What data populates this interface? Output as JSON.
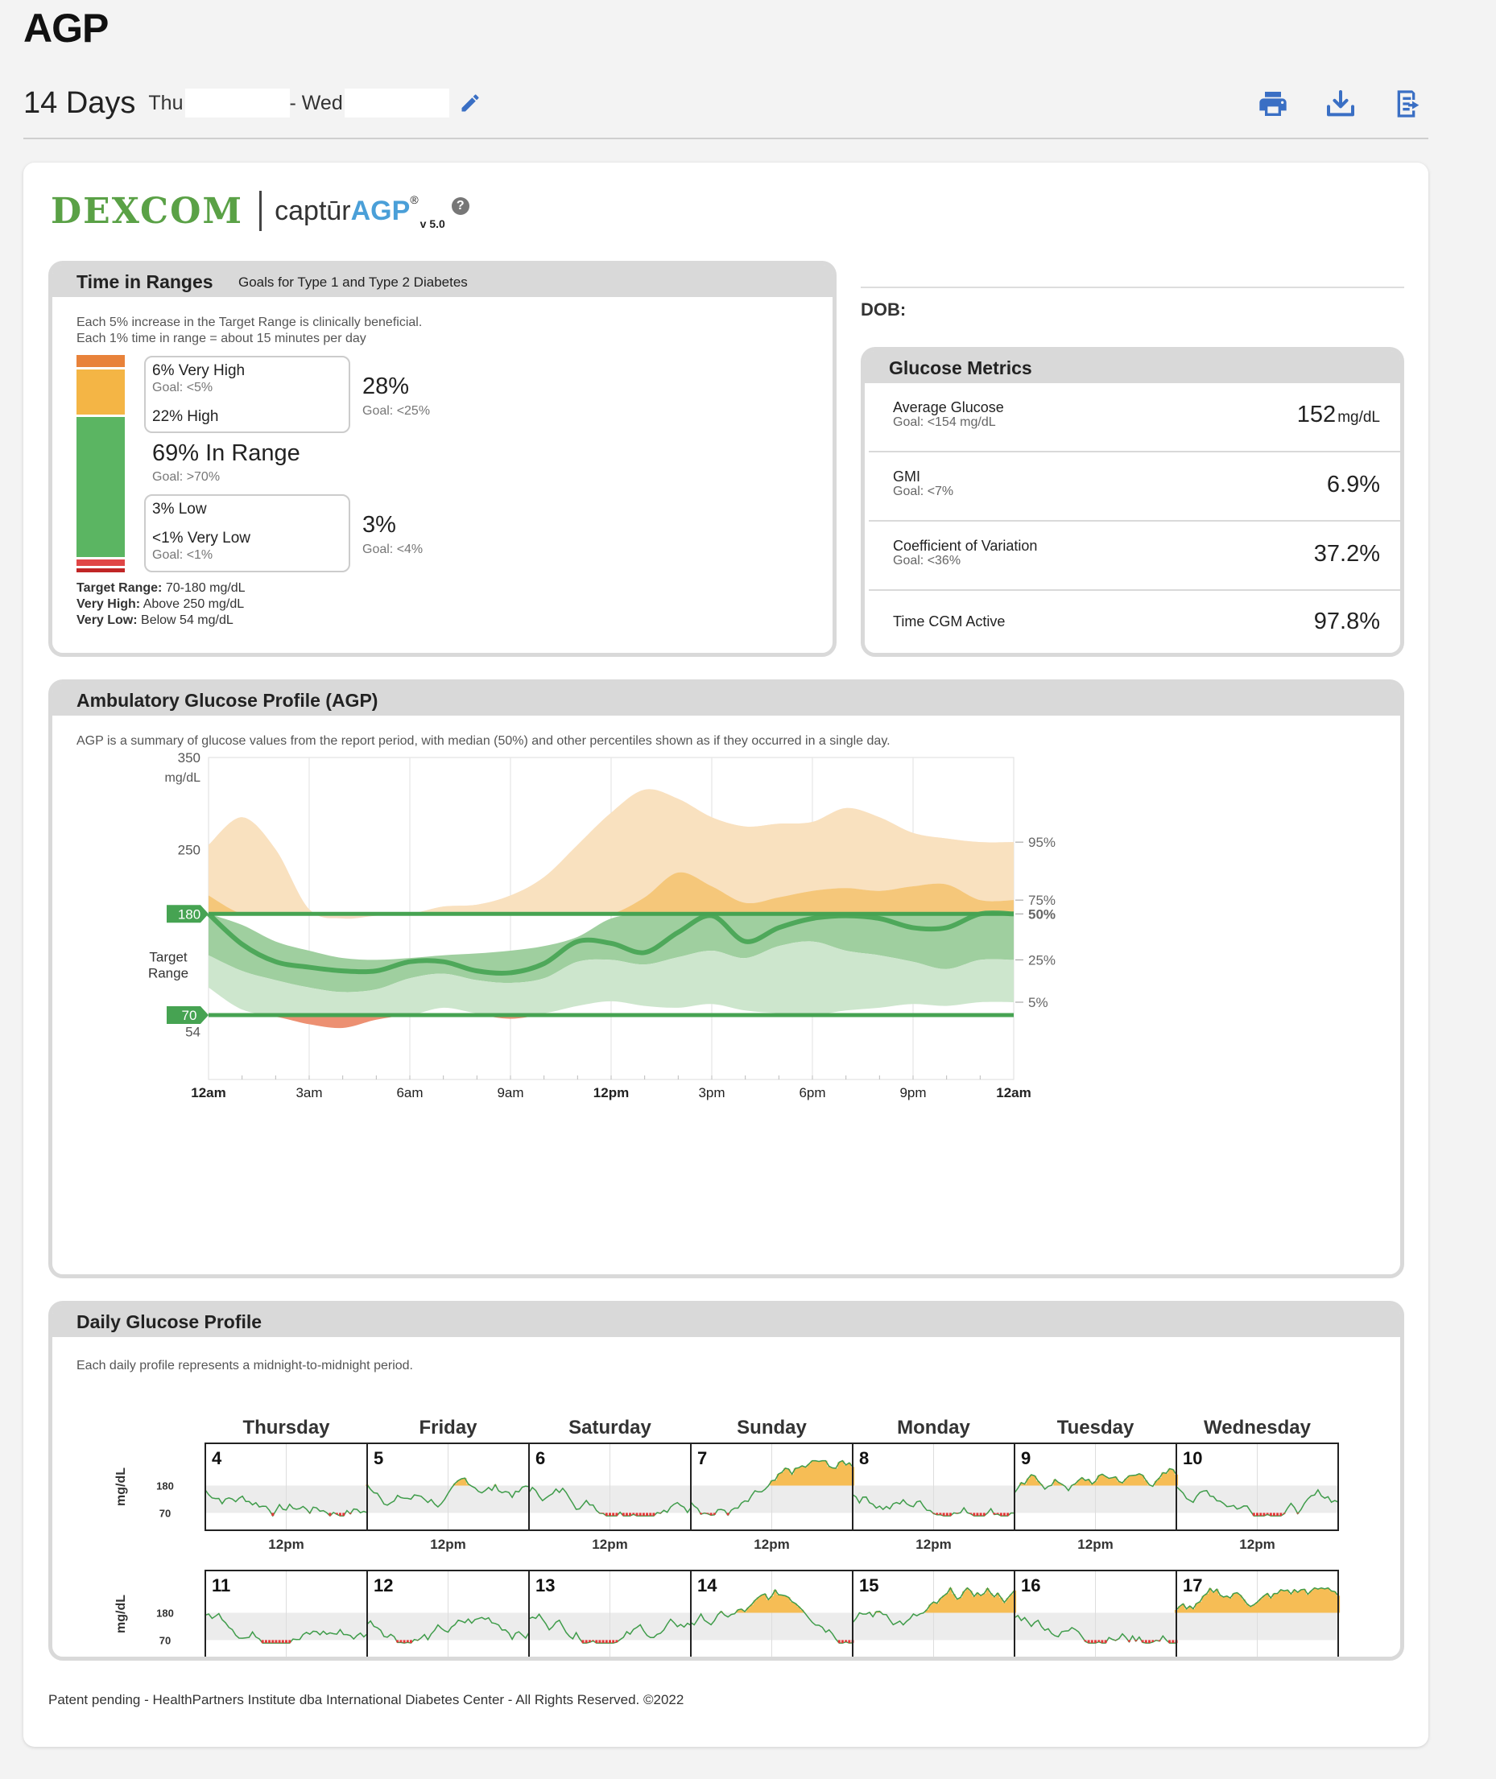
{
  "header": {
    "title": "AGP",
    "days": "14 Days",
    "start_day": "Thu",
    "end_day": "- Wed"
  },
  "toolbar": {
    "icons": [
      "print-icon",
      "download-icon",
      "export-icon"
    ]
  },
  "brand": {
    "dexcom": "DEXCOM",
    "captur": "captūr",
    "agp": "AGP",
    "reg": "®",
    "version": "v 5.0",
    "help": "?"
  },
  "tir": {
    "title": "Time in Ranges",
    "subtitle": "Goals for Type 1 and Type 2 Diabetes",
    "note1": "Each 5% increase in the Target Range is clinically beneficial.",
    "note2": "Each 1% time in range = about 15 minutes per day",
    "very_high": "6% Very High",
    "very_high_goal": "Goal: <5%",
    "high": "22% High",
    "high_total": "28%",
    "high_total_goal": "Goal: <25%",
    "in_range": "69% In Range",
    "in_range_goal": "Goal: >70%",
    "low": "3% Low",
    "very_low": "<1% Very Low",
    "very_low_goal": "Goal: <1%",
    "low_total": "3%",
    "low_total_goal": "Goal: <4%",
    "target_label": "Target Range:",
    "target_value": "70-180 mg/dL",
    "vh_label": "Very High:",
    "vh_value": "Above 250 mg/dL",
    "vl_label": "Very Low:",
    "vl_value": "Below 54 mg/dL",
    "percents": {
      "very_high": 6,
      "high": 22,
      "in_range": 69,
      "low": 3,
      "very_low": 1
    },
    "colors": {
      "very_high": "#e8823a",
      "high": "#f4b545",
      "in_range": "#5bb562",
      "low": "#e04646",
      "very_low": "#c02626"
    }
  },
  "dob": "DOB:",
  "metrics": {
    "title": "Glucose Metrics",
    "avg_label": "Average Glucose",
    "avg_goal": "Goal: <154 mg/dL",
    "avg_value": "152",
    "avg_unit": "mg/dL",
    "gmi_label": "GMI",
    "gmi_goal": "Goal: <7%",
    "gmi_value": "6.9%",
    "cv_label": "Coefficient of Variation",
    "cv_goal": "Goal: <36%",
    "cv_value": "37.2%",
    "active_label": "Time CGM Active",
    "active_value": "97.8%"
  },
  "agp": {
    "title": "Ambulatory Glucose Profile (AGP)",
    "note": "AGP is a summary of glucose values from the report period, with median (50%) and other percentiles shown as if they occurred in a single day.",
    "unit": "mg/dL",
    "target_label_1": "Target",
    "target_label_2": "Range",
    "y_ticks": [
      "350",
      "250",
      "180",
      "70",
      "54"
    ],
    "x_ticks": [
      "12am",
      "3am",
      "6am",
      "9am",
      "12pm",
      "3pm",
      "6pm",
      "9pm",
      "12am"
    ],
    "pct_labels": [
      "95%",
      "75%",
      "50%",
      "25%",
      "5%"
    ]
  },
  "chart_data": {
    "type": "area",
    "title": "Ambulatory Glucose Profile (AGP)",
    "xlabel": "",
    "ylabel": "mg/dL",
    "ylim": [
      0,
      350
    ],
    "x_hours": [
      0,
      1,
      2,
      3,
      4,
      5,
      6,
      7,
      8,
      9,
      10,
      11,
      12,
      13,
      14,
      15,
      16,
      17,
      18,
      19,
      20,
      21,
      22,
      23,
      24
    ],
    "target_range": [
      70,
      180
    ],
    "series": [
      {
        "name": "95%",
        "values": [
          255,
          285,
          250,
          185,
          175,
          178,
          180,
          188,
          190,
          200,
          220,
          255,
          290,
          315,
          305,
          285,
          275,
          278,
          280,
          295,
          285,
          268,
          262,
          258,
          258
        ]
      },
      {
        "name": "75%",
        "values": [
          200,
          168,
          150,
          140,
          132,
          130,
          132,
          135,
          137,
          140,
          145,
          155,
          175,
          198,
          225,
          210,
          192,
          198,
          205,
          208,
          205,
          210,
          212,
          195,
          195
        ]
      },
      {
        "name": "50%",
        "values": [
          180,
          147,
          128,
          122,
          118,
          118,
          128,
          128,
          118,
          116,
          126,
          150,
          148,
          138,
          160,
          178,
          150,
          165,
          175,
          178,
          175,
          165,
          165,
          180,
          180
        ]
      },
      {
        "name": "25%",
        "values": [
          135,
          118,
          108,
          100,
          95,
          98,
          110,
          115,
          108,
          105,
          110,
          128,
          130,
          125,
          133,
          140,
          132,
          145,
          150,
          140,
          135,
          128,
          120,
          130,
          130
        ]
      },
      {
        "name": "5%",
        "values": [
          100,
          76,
          68,
          60,
          56,
          65,
          70,
          78,
          72,
          66,
          72,
          80,
          85,
          80,
          78,
          82,
          75,
          72,
          70,
          75,
          78,
          82,
          80,
          84,
          84
        ]
      }
    ]
  },
  "daily": {
    "title": "Daily Glucose Profile",
    "note": "Each daily profile represents a midnight-to-midnight period.",
    "weekdays": [
      "Thursday",
      "Friday",
      "Saturday",
      "Sunday",
      "Monday",
      "Tuesday",
      "Wednesday"
    ],
    "week1": [
      "4",
      "5",
      "6",
      "7",
      "8",
      "9",
      "10"
    ],
    "week2": [
      "11",
      "12",
      "13",
      "14",
      "15",
      "16",
      "17"
    ],
    "noon": "12pm",
    "unit": "mg/dL",
    "hi": "180",
    "lo": "70"
  },
  "footer": "Patent pending - HealthPartners Institute dba International Diabetes Center - All Rights Reserved. ©2022"
}
